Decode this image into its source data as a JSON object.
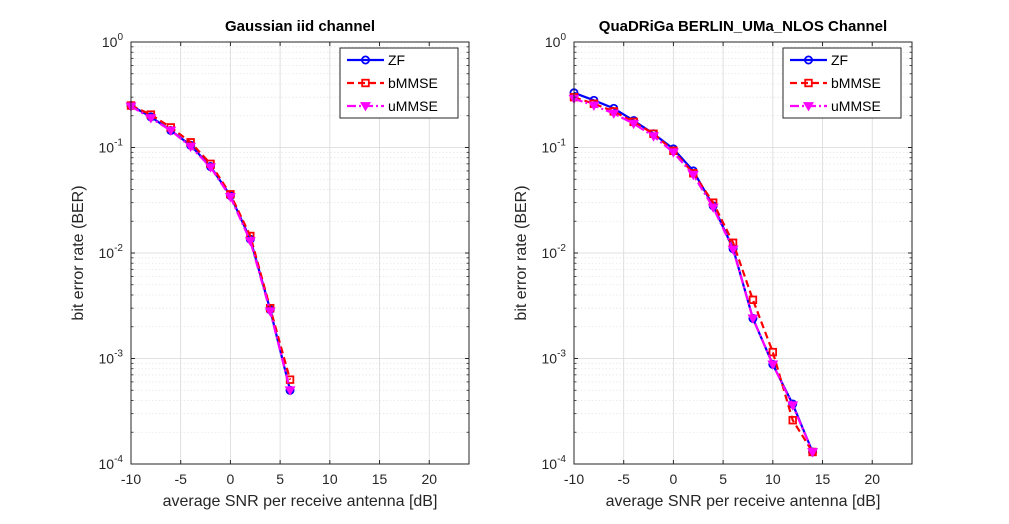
{
  "chart_data": [
    {
      "type": "line",
      "title": "Gaussian iid channel",
      "xlabel": "average SNR per receive antenna [dB]",
      "ylabel": "bit error rate (BER)",
      "xlim": [
        -10,
        24
      ],
      "ylim": [
        0.0001,
        1
      ],
      "yscale": "log",
      "grid": true,
      "legend_position": "top-right",
      "x_ticks": [
        "-10",
        "-5",
        "0",
        "5",
        "10",
        "15",
        "20"
      ],
      "y_ticks": [
        {
          "base": "10",
          "exp": "0"
        },
        {
          "base": "10",
          "exp": "-1"
        },
        {
          "base": "10",
          "exp": "-2"
        },
        {
          "base": "10",
          "exp": "-3"
        },
        {
          "base": "10",
          "exp": "-4"
        }
      ],
      "series": [
        {
          "name": "ZF",
          "color": "#0000ff",
          "style": "solid",
          "marker": "circle",
          "x": [
            -10,
            -8,
            -6,
            -4,
            -2,
            0,
            2,
            4,
            6
          ],
          "y": [
            0.25,
            0.195,
            0.145,
            0.105,
            0.066,
            0.035,
            0.0135,
            0.0029,
            0.0005
          ]
        },
        {
          "name": "bMMSE",
          "color": "#ff0000",
          "style": "dashed",
          "marker": "square",
          "x": [
            -10,
            -8,
            -6,
            -4,
            -2,
            0,
            2,
            4,
            6
          ],
          "y": [
            0.25,
            0.205,
            0.155,
            0.112,
            0.07,
            0.036,
            0.0145,
            0.003,
            0.00063
          ]
        },
        {
          "name": "uMMSE",
          "color": "#ff00ff",
          "style": "dashdot",
          "marker": "triangle-down",
          "x": [
            -10,
            -8,
            -6,
            -4,
            -2,
            0,
            2,
            4,
            6
          ],
          "y": [
            0.245,
            0.19,
            0.145,
            0.102,
            0.065,
            0.034,
            0.013,
            0.0028,
            0.0005
          ]
        }
      ]
    },
    {
      "type": "line",
      "title": "QuaDRiGa BERLIN_UMa_NLOS Channel",
      "xlabel": "average SNR per receive antenna [dB]",
      "ylabel": "bit error rate (BER)",
      "xlim": [
        -10,
        24
      ],
      "ylim": [
        0.0001,
        1
      ],
      "yscale": "log",
      "grid": true,
      "legend_position": "top-right",
      "x_ticks": [
        "-10",
        "-5",
        "0",
        "5",
        "10",
        "15",
        "20"
      ],
      "y_ticks": [
        {
          "base": "10",
          "exp": "0"
        },
        {
          "base": "10",
          "exp": "-1"
        },
        {
          "base": "10",
          "exp": "-2"
        },
        {
          "base": "10",
          "exp": "-3"
        },
        {
          "base": "10",
          "exp": "-4"
        }
      ],
      "series": [
        {
          "name": "ZF",
          "color": "#0000ff",
          "style": "solid",
          "marker": "circle",
          "x": [
            -10,
            -8,
            -6,
            -4,
            -2,
            0,
            2,
            4,
            6,
            8,
            10,
            12,
            14
          ],
          "y": [
            0.33,
            0.28,
            0.235,
            0.18,
            0.135,
            0.097,
            0.06,
            0.028,
            0.011,
            0.0024,
            0.00088,
            0.00037,
            0.00013
          ]
        },
        {
          "name": "bMMSE",
          "color": "#ff0000",
          "style": "dashed",
          "marker": "square",
          "x": [
            -10,
            -8,
            -6,
            -4,
            -2,
            0,
            2,
            4,
            6,
            8,
            10,
            12,
            14
          ],
          "y": [
            0.3,
            0.26,
            0.22,
            0.175,
            0.135,
            0.093,
            0.057,
            0.03,
            0.0125,
            0.0036,
            0.00115,
            0.00026,
            0.00013
          ]
        },
        {
          "name": "uMMSE",
          "color": "#ff00ff",
          "style": "dashdot",
          "marker": "triangle-down",
          "x": [
            -10,
            -8,
            -6,
            -4,
            -2,
            0,
            2,
            4,
            6,
            8,
            10,
            12,
            14
          ],
          "y": [
            0.29,
            0.25,
            0.21,
            0.168,
            0.128,
            0.09,
            0.055,
            0.027,
            0.0108,
            0.0024,
            0.00088,
            0.00036,
            0.00013
          ]
        }
      ]
    }
  ]
}
